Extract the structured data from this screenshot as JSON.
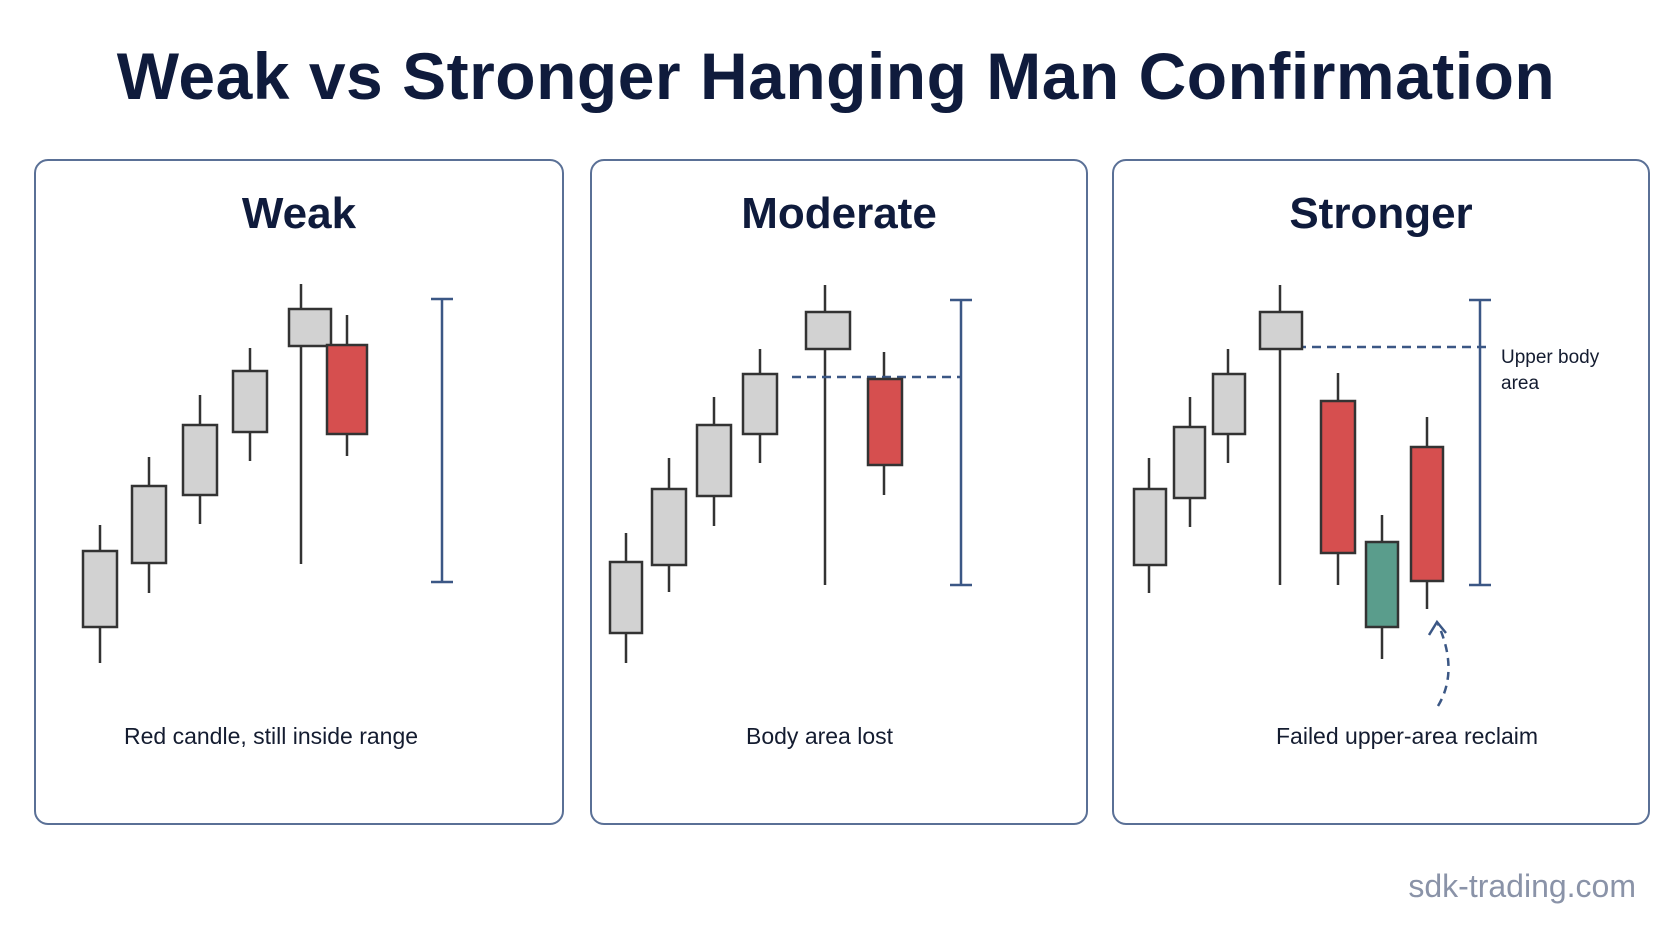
{
  "title": "Weak vs Stronger Hanging Man Confirmation",
  "colors": {
    "neutral_candle": "#d2d2d2",
    "bearish_candle": "#d64f4f",
    "bullish_candle": "#5a9d8c",
    "range_line": "#3b5785",
    "outline": "#2a2a2a"
  },
  "panels": [
    {
      "title": "Weak",
      "caption": "Red candle, still inside range"
    },
    {
      "title": "Moderate",
      "caption": "Body area lost"
    },
    {
      "title": "Stronger",
      "caption": "Failed upper-area reclaim",
      "note": "Upper body area"
    }
  ],
  "watermark": "sdk-trading.com"
}
